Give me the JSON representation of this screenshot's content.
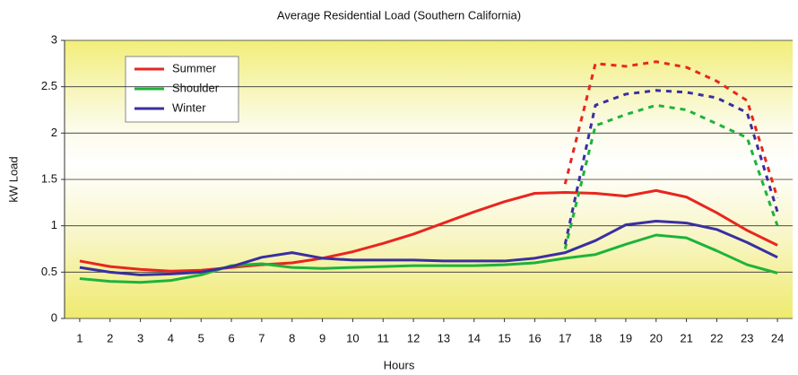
{
  "chart_data": {
    "type": "line",
    "title": "Average Residential Load (Southern California)",
    "xlabel": "Hours",
    "ylabel": "kW Load",
    "x": [
      1,
      2,
      3,
      4,
      5,
      6,
      7,
      8,
      9,
      10,
      11,
      12,
      13,
      14,
      15,
      16,
      17,
      18,
      19,
      20,
      21,
      22,
      23,
      24
    ],
    "xlim": [
      0.5,
      24.5
    ],
    "xticks": [
      1,
      2,
      3,
      4,
      5,
      6,
      7,
      8,
      9,
      10,
      11,
      12,
      13,
      14,
      15,
      16,
      17,
      18,
      19,
      20,
      21,
      22,
      23,
      24
    ],
    "ylim": [
      0,
      3
    ],
    "yticks": [
      0,
      0.5,
      1,
      1.5,
      2,
      2.5,
      3
    ],
    "grid": true,
    "legend": "upper left",
    "series": [
      {
        "name": "Summer",
        "color": "#e8261f",
        "values": [
          0.62,
          0.56,
          0.53,
          0.51,
          0.52,
          0.55,
          0.58,
          0.6,
          0.65,
          0.72,
          0.81,
          0.91,
          1.03,
          1.15,
          1.26,
          1.35,
          1.36,
          1.35,
          1.32,
          1.38,
          1.31,
          1.14,
          0.95,
          0.79
        ],
        "peak_values": [
          null,
          null,
          null,
          null,
          null,
          null,
          null,
          null,
          null,
          null,
          null,
          null,
          null,
          null,
          null,
          null,
          1.45,
          2.75,
          2.72,
          2.77,
          2.71,
          2.56,
          2.35,
          1.3
        ]
      },
      {
        "name": "Shoulder",
        "color": "#1db33a",
        "values": [
          0.43,
          0.4,
          0.39,
          0.41,
          0.47,
          0.57,
          0.59,
          0.55,
          0.54,
          0.55,
          0.56,
          0.57,
          0.57,
          0.57,
          0.58,
          0.6,
          0.65,
          0.69,
          0.8,
          0.9,
          0.87,
          0.73,
          0.58,
          0.49
        ],
        "peak_values": [
          null,
          null,
          null,
          null,
          null,
          null,
          null,
          null,
          null,
          null,
          null,
          null,
          null,
          null,
          null,
          null,
          0.75,
          2.08,
          2.2,
          2.3,
          2.25,
          2.1,
          1.95,
          1.0
        ]
      },
      {
        "name": "Winter",
        "color": "#3a2fa0",
        "values": [
          0.55,
          0.5,
          0.47,
          0.48,
          0.5,
          0.56,
          0.66,
          0.71,
          0.65,
          0.63,
          0.63,
          0.63,
          0.62,
          0.62,
          0.62,
          0.65,
          0.71,
          0.84,
          1.01,
          1.05,
          1.03,
          0.96,
          0.82,
          0.66
        ],
        "peak_values": [
          null,
          null,
          null,
          null,
          null,
          null,
          null,
          null,
          null,
          null,
          null,
          null,
          null,
          null,
          null,
          null,
          0.8,
          2.3,
          2.42,
          2.46,
          2.44,
          2.38,
          2.22,
          1.15
        ]
      }
    ]
  }
}
